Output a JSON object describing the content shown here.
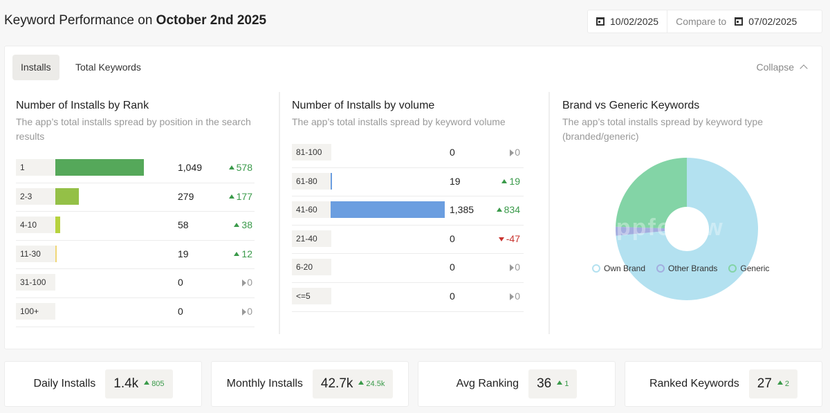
{
  "header": {
    "title_prefix": "Keyword Performance on ",
    "title_date": "October 2nd 2025",
    "date": "10/02/2025",
    "compare_label": "Compare to",
    "compare_date": "07/02/2025"
  },
  "tabs": [
    {
      "label": "Installs",
      "active": true
    },
    {
      "label": "Total Keywords",
      "active": false
    }
  ],
  "collapse_label": "Collapse",
  "rank_section": {
    "title": "Number of Installs by Rank",
    "subtitle": "The app’s total installs spread by position in the search results",
    "rows": [
      {
        "label": "1",
        "value": "1,049",
        "raw": 1049,
        "delta": "578",
        "trend": "up",
        "color": "#55a85a"
      },
      {
        "label": "2-3",
        "value": "279",
        "raw": 279,
        "delta": "177",
        "trend": "up",
        "color": "#94c047"
      },
      {
        "label": "4-10",
        "value": "58",
        "raw": 58,
        "delta": "38",
        "trend": "up",
        "color": "#b6d23e"
      },
      {
        "label": "11-30",
        "value": "19",
        "raw": 19,
        "delta": "12",
        "trend": "up",
        "color": "#f0d778"
      },
      {
        "label": "31-100",
        "value": "0",
        "raw": 0,
        "delta": "0",
        "trend": "flat",
        "color": "#cccccc"
      },
      {
        "label": "100+",
        "value": "0",
        "raw": 0,
        "delta": "0",
        "trend": "flat",
        "color": "#cccccc"
      }
    ]
  },
  "volume_section": {
    "title": "Number of Installs by volume",
    "subtitle": "The app’s total installs spread by keyword volume",
    "rows": [
      {
        "label": "81-100",
        "value": "0",
        "raw": 0,
        "delta": "0",
        "trend": "flat",
        "color": "#6b9ee0"
      },
      {
        "label": "61-80",
        "value": "19",
        "raw": 19,
        "delta": "19",
        "trend": "up",
        "color": "#6b9ee0"
      },
      {
        "label": "41-60",
        "value": "1,385",
        "raw": 1385,
        "delta": "834",
        "trend": "up",
        "color": "#6b9ee0"
      },
      {
        "label": "21-40",
        "value": "0",
        "raw": 0,
        "delta": "-47",
        "trend": "down",
        "color": "#6b9ee0"
      },
      {
        "label": "6-20",
        "value": "0",
        "raw": 0,
        "delta": "0",
        "trend": "flat",
        "color": "#6b9ee0"
      },
      {
        "label": "<=5",
        "value": "0",
        "raw": 0,
        "delta": "0",
        "trend": "flat",
        "color": "#6b9ee0"
      }
    ]
  },
  "brand_section": {
    "title": "Brand vs Generic Keywords",
    "subtitle": "The app’s total installs spread by keyword type (branded/generic)",
    "watermark": "appfollow"
  },
  "chart_data": {
    "type": "pie",
    "title": "Brand vs Generic Keywords",
    "donut": true,
    "legend_position": "bottom",
    "slices": [
      {
        "name": "Own Brand",
        "value": 73.5,
        "color": "#b3e1f0"
      },
      {
        "name": "Other Brands",
        "value": 2.0,
        "color": "#a3addf"
      },
      {
        "name": "Generic",
        "value": 24.5,
        "color": "#83d4a6"
      }
    ]
  },
  "stats": [
    {
      "label": "Daily Installs",
      "value": "1.4k",
      "delta": "805"
    },
    {
      "label": "Monthly Installs",
      "value": "42.7k",
      "delta": "24.5k"
    },
    {
      "label": "Avg Ranking",
      "value": "36",
      "delta": "1"
    },
    {
      "label": "Ranked Keywords",
      "value": "27",
      "delta": "2"
    }
  ]
}
